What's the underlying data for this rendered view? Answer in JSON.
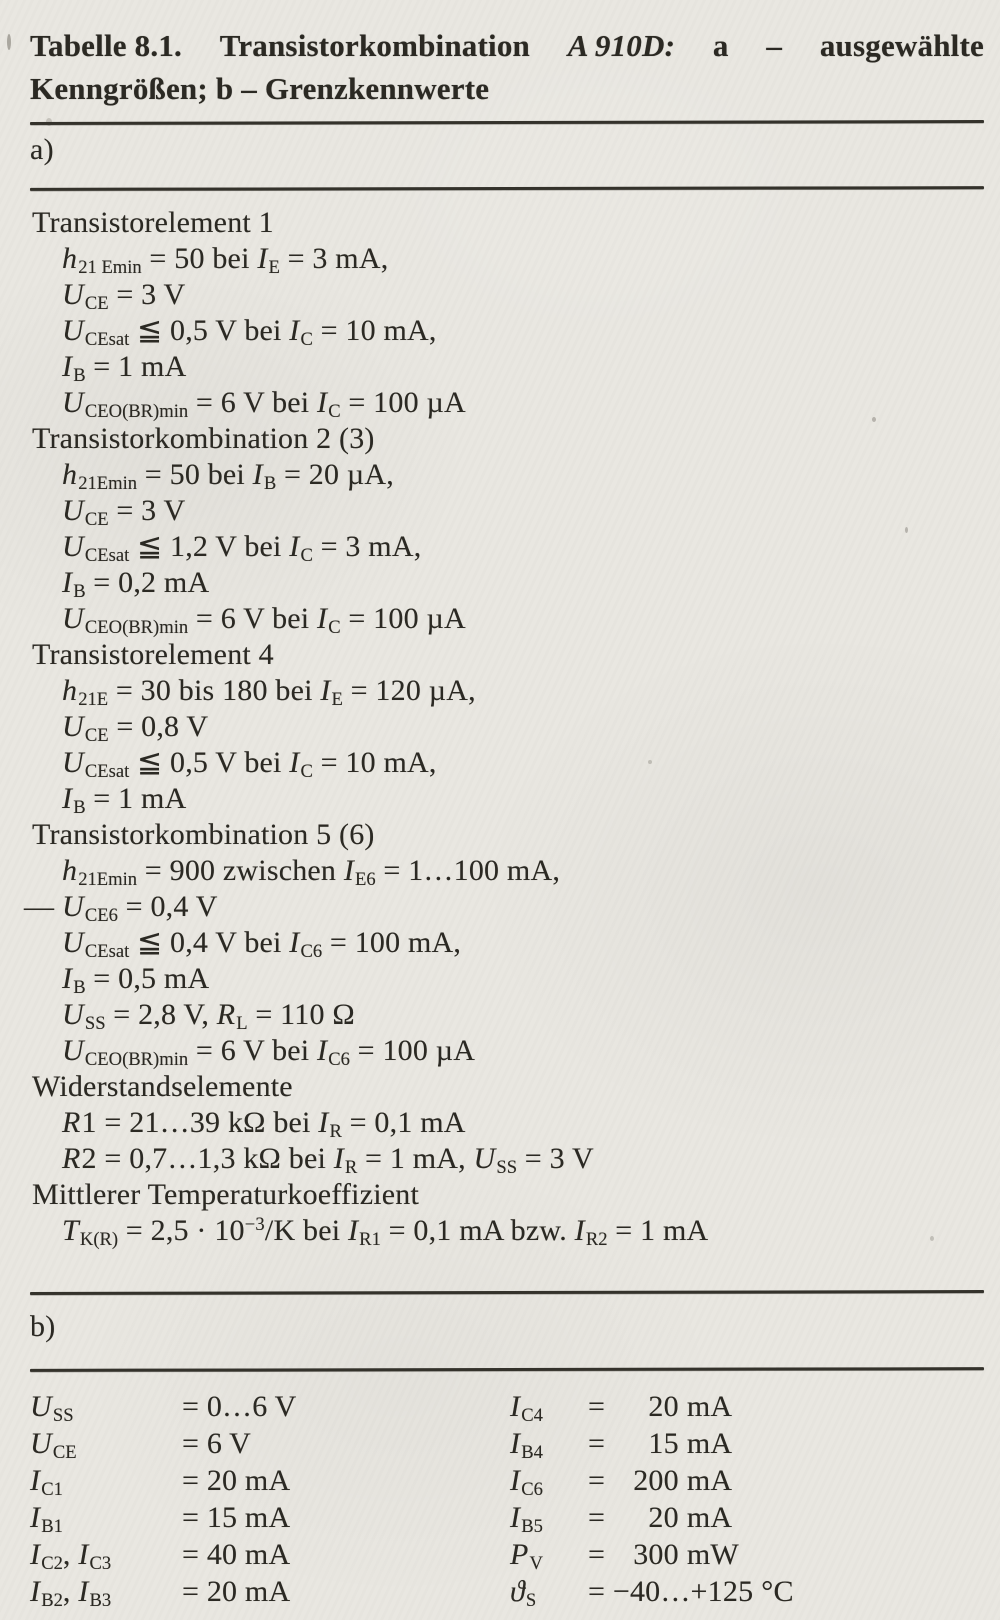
{
  "paper": {
    "background": "#e9e7e1",
    "ink": "#2b2923",
    "rule_color": "#34322b"
  },
  "title": {
    "line1_parts": [
      {
        "text": "Tabelle 8.1."
      },
      {
        "text": "Transistorkombination"
      },
      {
        "text": "A 910D:",
        "italic": true
      },
      {
        "text": "a"
      },
      {
        "text": "–"
      },
      {
        "text": "ausgewählte"
      }
    ],
    "line2": "Kenngrößen; b – Grenzkennwerte"
  },
  "a": {
    "label": "a)",
    "groups": [
      {
        "header": "Transistorelement 1",
        "lines": [
          {
            "seg": [
              [
                "i",
                "h"
              ],
              [
                "s",
                "21 Emin"
              ],
              [
                "n",
                " = 50 bei "
              ],
              [
                "i",
                "I"
              ],
              [
                "s",
                "E"
              ],
              [
                "n",
                " = 3 mA,"
              ]
            ]
          },
          {
            "seg": [
              [
                "i",
                "U"
              ],
              [
                "s",
                "CE"
              ],
              [
                "n",
                " = 3 V"
              ]
            ]
          },
          {
            "seg": [
              [
                "i",
                "U"
              ],
              [
                "s",
                "CEsat"
              ],
              [
                "n",
                " ≦ 0,5 V bei "
              ],
              [
                "i",
                "I"
              ],
              [
                "s",
                "C"
              ],
              [
                "n",
                " = 10 mA,"
              ]
            ]
          },
          {
            "seg": [
              [
                "i",
                "I"
              ],
              [
                "s",
                "B"
              ],
              [
                "n",
                " = 1 mA"
              ]
            ]
          },
          {
            "seg": [
              [
                "i",
                "U"
              ],
              [
                "s",
                "CEO(BR)min"
              ],
              [
                "n",
                " = 6 V bei "
              ],
              [
                "i",
                "I"
              ],
              [
                "s",
                "C"
              ],
              [
                "n",
                " = 100 µA"
              ]
            ]
          }
        ]
      },
      {
        "header": "Transistorkombination 2 (3)",
        "lines": [
          {
            "seg": [
              [
                "i",
                "h"
              ],
              [
                "s",
                "21Emin"
              ],
              [
                "n",
                " = 50 bei "
              ],
              [
                "i",
                "I"
              ],
              [
                "s",
                "B"
              ],
              [
                "n",
                " = 20 µA,"
              ]
            ]
          },
          {
            "seg": [
              [
                "i",
                "U"
              ],
              [
                "s",
                "CE"
              ],
              [
                "n",
                " = 3 V"
              ]
            ]
          },
          {
            "seg": [
              [
                "i",
                "U"
              ],
              [
                "s",
                "CEsat"
              ],
              [
                "n",
                " ≦ 1,2 V bei "
              ],
              [
                "i",
                "I"
              ],
              [
                "s",
                "C"
              ],
              [
                "n",
                " = 3 mA,"
              ]
            ]
          },
          {
            "seg": [
              [
                "i",
                "I"
              ],
              [
                "s",
                "B"
              ],
              [
                "n",
                " = 0,2 mA"
              ]
            ]
          },
          {
            "seg": [
              [
                "i",
                "U"
              ],
              [
                "s",
                "CEO(BR)min"
              ],
              [
                "n",
                " = 6 V bei "
              ],
              [
                "i",
                "I"
              ],
              [
                "s",
                "C"
              ],
              [
                "n",
                " = 100 µA"
              ]
            ]
          }
        ]
      },
      {
        "header": "Transistorelement 4",
        "lines": [
          {
            "seg": [
              [
                "i",
                "h"
              ],
              [
                "s",
                "21E"
              ],
              [
                "n",
                " = 30 bis 180 bei "
              ],
              [
                "i",
                "I"
              ],
              [
                "s",
                "E"
              ],
              [
                "n",
                " = 120 µA,"
              ]
            ]
          },
          {
            "seg": [
              [
                "i",
                "U"
              ],
              [
                "s",
                "CE"
              ],
              [
                "n",
                " = 0,8 V"
              ]
            ]
          },
          {
            "seg": [
              [
                "i",
                "U"
              ],
              [
                "s",
                "CEsat"
              ],
              [
                "n",
                " ≦ 0,5 V bei "
              ],
              [
                "i",
                "I"
              ],
              [
                "s",
                "C"
              ],
              [
                "n",
                " = 10 mA,"
              ]
            ]
          },
          {
            "seg": [
              [
                "i",
                "I"
              ],
              [
                "s",
                "B"
              ],
              [
                "n",
                " = 1 mA"
              ]
            ]
          }
        ]
      },
      {
        "header": "Transistorkombination 5 (6)",
        "lines": [
          {
            "seg": [
              [
                "i",
                "h"
              ],
              [
                "s",
                "21Emin"
              ],
              [
                "n",
                " = 900 zwischen "
              ],
              [
                "i",
                "I"
              ],
              [
                "s",
                "E6"
              ],
              [
                "n",
                " = 1…100 mA,"
              ]
            ]
          },
          {
            "dash": "—",
            "seg": [
              [
                "i",
                "U"
              ],
              [
                "s",
                "CE6"
              ],
              [
                "n",
                " = 0,4 V"
              ]
            ]
          },
          {
            "seg": [
              [
                "i",
                "U"
              ],
              [
                "s",
                "CEsat"
              ],
              [
                "n",
                " ≦ 0,4 V bei "
              ],
              [
                "i",
                "I"
              ],
              [
                "s",
                "C6"
              ],
              [
                "n",
                " = 100 mA,"
              ]
            ]
          },
          {
            "seg": [
              [
                "i",
                "I"
              ],
              [
                "s",
                "B"
              ],
              [
                "n",
                " = 0,5 mA"
              ]
            ]
          },
          {
            "seg": [
              [
                "i",
                "U"
              ],
              [
                "s",
                "SS"
              ],
              [
                "n",
                " = 2,8 V, "
              ],
              [
                "i",
                "R"
              ],
              [
                "s",
                "L"
              ],
              [
                "n",
                " = 110 Ω"
              ]
            ]
          },
          {
            "seg": [
              [
                "i",
                "U"
              ],
              [
                "s",
                "CEO(BR)min"
              ],
              [
                "n",
                " = 6 V bei "
              ],
              [
                "i",
                "I"
              ],
              [
                "s",
                "C6"
              ],
              [
                "n",
                " = 100 µA"
              ]
            ]
          }
        ]
      },
      {
        "header": "Widerstandselemente",
        "lines": [
          {
            "seg": [
              [
                "i",
                "R"
              ],
              [
                "n",
                "1 = 21…39 kΩ bei "
              ],
              [
                "i",
                "I"
              ],
              [
                "s",
                "R"
              ],
              [
                "n",
                " = 0,1 mA"
              ]
            ]
          },
          {
            "seg": [
              [
                "i",
                "R"
              ],
              [
                "n",
                "2 = 0,7…1,3 kΩ bei "
              ],
              [
                "i",
                "I"
              ],
              [
                "s",
                "R"
              ],
              [
                "n",
                " = 1 mA, "
              ],
              [
                "i",
                "U"
              ],
              [
                "s",
                "SS"
              ],
              [
                "n",
                " = 3 V"
              ]
            ]
          }
        ]
      },
      {
        "header": "Mittlerer Temperaturkoeffizient",
        "lines": [
          {
            "seg": [
              [
                "i",
                "T"
              ],
              [
                "s",
                "K(R)"
              ],
              [
                "n",
                " = 2,5 · 10"
              ],
              [
                "u",
                "−3"
              ],
              [
                "n",
                "/K bei "
              ],
              [
                "i",
                "I"
              ],
              [
                "s",
                "R1"
              ],
              [
                "n",
                " = 0,1 mA bzw. "
              ],
              [
                "i",
                "I"
              ],
              [
                "s",
                "R2"
              ],
              [
                "n",
                " = 1 mA"
              ]
            ]
          }
        ]
      }
    ]
  },
  "b": {
    "label": "b)",
    "left": [
      {
        "sym": [
          [
            "i",
            "U"
          ],
          [
            "s",
            "SS"
          ]
        ],
        "val": "= 0…6 V"
      },
      {
        "sym": [
          [
            "i",
            "U"
          ],
          [
            "s",
            "CE"
          ]
        ],
        "val": "= 6 V"
      },
      {
        "sym": [
          [
            "i",
            "I"
          ],
          [
            "s",
            "C1"
          ]
        ],
        "val": "= 20 mA"
      },
      {
        "sym": [
          [
            "i",
            "I"
          ],
          [
            "s",
            "B1"
          ]
        ],
        "val": "= 15 mA"
      },
      {
        "sym": [
          [
            "i",
            "I"
          ],
          [
            "s",
            "C2"
          ],
          [
            "n",
            ", "
          ],
          [
            "i",
            "I"
          ],
          [
            "s",
            "C3"
          ]
        ],
        "val": "= 40 mA"
      },
      {
        "sym": [
          [
            "i",
            "I"
          ],
          [
            "s",
            "B2"
          ],
          [
            "n",
            ", "
          ],
          [
            "i",
            "I"
          ],
          [
            "s",
            "B3"
          ]
        ],
        "val": "= 20 mA"
      }
    ],
    "right": [
      {
        "sym": [
          [
            "i",
            "I"
          ],
          [
            "s",
            "C4"
          ]
        ],
        "num": "20",
        "unit": "mA"
      },
      {
        "sym": [
          [
            "i",
            "I"
          ],
          [
            "s",
            "B4"
          ]
        ],
        "num": "15",
        "unit": "mA"
      },
      {
        "sym": [
          [
            "i",
            "I"
          ],
          [
            "s",
            "C6"
          ]
        ],
        "num": "200",
        "unit": "mA"
      },
      {
        "sym": [
          [
            "i",
            "I"
          ],
          [
            "s",
            "B5"
          ]
        ],
        "num": "20",
        "unit": "mA"
      },
      {
        "sym": [
          [
            "i",
            "P"
          ],
          [
            "s",
            "V"
          ]
        ],
        "num": "300",
        "unit": "mW"
      },
      {
        "sym": [
          [
            "i",
            "ϑ"
          ],
          [
            "s",
            "S"
          ]
        ],
        "num": "−40…+125",
        "unit": "°C"
      }
    ]
  }
}
